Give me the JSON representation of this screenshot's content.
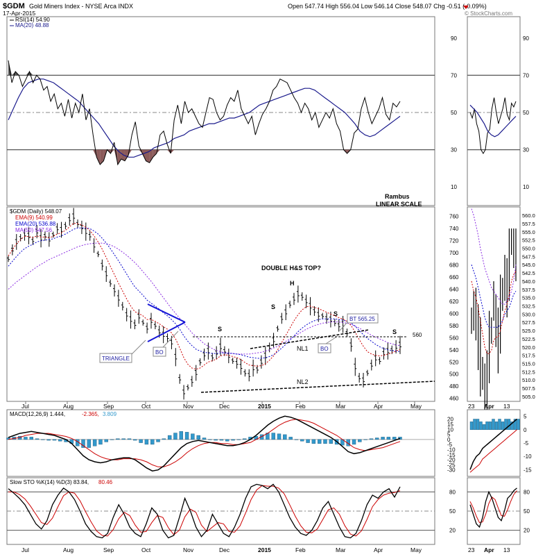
{
  "header": {
    "symbol": "$GDM",
    "name": "Gold Miners Index - NYSE Arca INDX",
    "date": "17-Apr-2015",
    "ohlc": "Open 547.74  High 556.04  Low 546.14  Close 548.07  Chg -0.51 (-0.09%)",
    "watermark": "© StockCharts.com"
  },
  "colors": {
    "price": "#000000",
    "ema9": "#cc0000",
    "ema20": "#0000cc",
    "ma50": "#8a2be2",
    "rsi_ma": "#1a1a8c",
    "macd_hist": "#3399cc",
    "oversold_fill": "#8b5a5a",
    "overbought_fill": "#555555"
  },
  "chart_data": [
    {
      "type": "line",
      "title": "RSI(14) 54.90",
      "legend": [
        "RSI(14) 54.90",
        "MA(20) 48.88"
      ],
      "ylim": [
        0,
        100
      ],
      "y_ticks": [
        10,
        30,
        50,
        70,
        90
      ],
      "x_ticks": [
        "Jul",
        "Aug",
        "Sep",
        "Oct",
        "Nov",
        "Dec",
        "2015",
        "Feb",
        "Mar",
        "Apr",
        "May"
      ],
      "series": [
        {
          "name": "RSI(14)",
          "values": [
            78,
            66,
            72,
            70,
            64,
            68,
            72,
            66,
            70,
            68,
            62,
            64,
            56,
            60,
            52,
            55,
            48,
            57,
            47,
            55,
            50,
            60,
            46,
            52,
            38,
            26,
            22,
            24,
            30,
            28,
            34,
            22,
            25,
            24,
            27,
            38,
            45,
            32,
            28,
            24,
            23,
            26,
            28,
            38,
            40,
            33,
            28,
            46,
            54,
            44,
            56,
            50,
            52,
            48,
            44,
            42,
            50,
            58,
            57,
            50,
            46,
            48,
            54,
            58,
            56,
            62,
            52,
            48,
            44,
            48,
            38,
            44,
            49,
            52,
            56,
            62,
            64,
            68,
            67,
            66,
            62,
            58,
            55,
            50,
            55,
            52,
            46,
            50,
            42,
            46,
            50,
            47,
            52,
            44,
            40,
            30,
            28,
            30,
            39,
            41,
            52,
            58,
            50,
            44,
            48,
            52,
            58,
            49,
            46,
            55,
            53,
            56
          ]
        },
        {
          "name": "MA(20)",
          "values": [
            46,
            52,
            58,
            63,
            66,
            67,
            68,
            68,
            67,
            66,
            64,
            62,
            60,
            58,
            56,
            53,
            50,
            47,
            44,
            40,
            36,
            32,
            29,
            27,
            26,
            26,
            27,
            28,
            29,
            31,
            32,
            33,
            34,
            36,
            37,
            38,
            40,
            41,
            42,
            43,
            44,
            44,
            45,
            46,
            47,
            47,
            48,
            49,
            50,
            52,
            54,
            55,
            56,
            57,
            58,
            59,
            60,
            61,
            62,
            63,
            63,
            62,
            60,
            58,
            56,
            54,
            52,
            50,
            47,
            44,
            40,
            38,
            37,
            38,
            40,
            42,
            44,
            46,
            48
          ]
        }
      ],
      "annotations": [
        "Rambus",
        "LINEAR SCALE"
      ]
    },
    {
      "type": "line",
      "title": "$GDM (Daily) 548.07",
      "legend": [
        "$GDM (Daily) 548.07",
        "EMA(9) 540.99",
        "EMA(20) 536.88",
        "MA(50) 547.56"
      ],
      "ylim": [
        455,
        770
      ],
      "y_ticks": [
        460,
        480,
        500,
        520,
        540,
        560,
        580,
        600,
        620,
        640,
        660,
        680,
        700,
        720,
        740,
        760
      ],
      "x_ticks": [
        "Jul",
        "Aug",
        "Sep",
        "Oct",
        "Nov",
        "Dec",
        "2015",
        "Feb",
        "Mar",
        "Apr",
        "May"
      ],
      "series": [
        {
          "name": "$GDM (Daily)",
          "values": [
            690,
            705,
            718,
            725,
            730,
            728,
            720,
            735,
            724,
            728,
            722,
            730,
            740,
            738,
            745,
            755,
            760,
            748,
            742,
            735,
            728,
            712,
            698,
            680,
            665,
            650,
            638,
            625,
            612,
            598,
            590,
            582,
            595,
            585,
            576,
            588,
            580,
            570,
            565,
            560,
            552,
            528,
            492,
            470,
            478,
            488,
            502,
            520,
            532,
            538,
            528,
            535,
            545,
            538,
            530,
            522,
            518,
            512,
            502,
            498,
            510,
            508,
            520,
            530,
            544,
            556,
            575,
            592,
            602,
            615,
            624,
            632,
            628,
            620,
            612,
            604,
            598,
            596,
            592,
            590,
            585,
            580,
            582,
            568,
            548,
            512,
            494,
            490,
            502,
            515,
            526,
            522,
            534,
            538,
            540,
            545,
            548
          ]
        },
        {
          "name": "EMA(9)",
          "values": [
            695,
            705,
            715,
            722,
            727,
            727,
            725,
            728,
            726,
            726,
            725,
            727,
            731,
            733,
            737,
            743,
            749,
            748,
            746,
            742,
            737,
            728,
            718,
            706,
            692,
            678,
            664,
            650,
            637,
            624,
            612,
            603,
            600,
            596,
            590,
            590,
            587,
            583,
            578,
            574,
            568,
            558,
            543,
            527,
            516,
            510,
            508,
            510,
            515,
            520,
            522,
            525,
            530,
            532,
            531,
            529,
            527,
            524,
            519,
            515,
            514,
            513,
            514,
            517,
            523,
            530,
            540,
            552,
            564,
            576,
            588,
            598,
            606,
            611,
            612,
            610,
            608,
            605,
            602,
            599,
            596,
            593,
            591,
            587,
            580,
            569,
            557,
            546,
            537,
            533,
            531,
            530,
            531,
            533,
            535,
            538,
            541
          ]
        },
        {
          "name": "EMA(20)",
          "values": [
            678,
            686,
            694,
            701,
            707,
            711,
            714,
            718,
            720,
            721,
            722,
            723,
            726,
            728,
            731,
            735,
            739,
            741,
            741,
            741,
            740,
            736,
            731,
            724,
            716,
            707,
            697,
            687,
            676,
            665,
            654,
            644,
            637,
            630,
            622,
            617,
            612,
            607,
            601,
            596,
            590,
            583,
            574,
            563,
            554,
            547,
            541,
            538,
            536,
            535,
            534,
            534,
            535,
            535,
            535,
            534,
            533,
            532,
            530,
            528,
            527,
            526,
            526,
            527,
            529,
            532,
            537,
            543,
            549,
            556,
            563,
            570,
            576,
            581,
            585,
            588,
            590,
            591,
            591,
            591,
            591,
            590,
            589,
            587,
            584,
            579,
            572,
            565,
            559,
            554,
            549,
            545,
            542,
            540,
            539,
            538,
            537
          ]
        },
        {
          "name": "MA(50)",
          "values": [
            640,
            646,
            652,
            657,
            662,
            667,
            672,
            677,
            681,
            685,
            689,
            692,
            695,
            698,
            701,
            704,
            707,
            710,
            712,
            714,
            715,
            716,
            716,
            716,
            715,
            713,
            710,
            706,
            701,
            696,
            690,
            684,
            677,
            669,
            661,
            653,
            644,
            635,
            626,
            617,
            608,
            600,
            592,
            584,
            576,
            568,
            562,
            556,
            550,
            546,
            542,
            539,
            537,
            535,
            534,
            534,
            533,
            533,
            533,
            533,
            534,
            535,
            536,
            538,
            540,
            543,
            546,
            550,
            554,
            558,
            562,
            566,
            570,
            574,
            577,
            580,
            582,
            584,
            585,
            586,
            586,
            586,
            585,
            584,
            582,
            579,
            576,
            572,
            568,
            564,
            561,
            558,
            555,
            552,
            550,
            548,
            547
          ]
        }
      ],
      "annotations": [
        "DOUBLE H&S TOP?",
        "H",
        "S",
        "S",
        "S",
        "S",
        "BT 565.25",
        "BO",
        "BO",
        "TRIANGLE",
        "NL1",
        "NL2",
        "560"
      ],
      "inset": {
        "y_ticks": [
          "505.0",
          "507.5",
          "510.0",
          "512.5",
          "515.0",
          "517.5",
          "520.0",
          "522.5",
          "525.0",
          "527.5",
          "530.0",
          "532.5",
          "535.0",
          "537.5",
          "540.0",
          "542.5",
          "545.0",
          "547.5",
          "550.0",
          "552.5",
          "555.0",
          "557.5",
          "560.0"
        ],
        "x_ticks": [
          "23",
          "Apr",
          "13"
        ]
      }
    },
    {
      "type": "line",
      "title": "MACD(12,26,9) 1.444, -2.365, 3.809",
      "legend": [
        "MACD(12,26,9) 1.444,",
        "-2.365,",
        "3.809"
      ],
      "ylim": [
        -35,
        28
      ],
      "y_ticks": [
        -30,
        -25,
        -20,
        -15,
        -10,
        -5,
        0,
        5,
        10,
        15,
        20
      ],
      "inset_y_ticks": [
        -15,
        -10,
        -5,
        0,
        5
      ],
      "x_ticks": [
        "Jul",
        "Aug",
        "Sep",
        "Oct",
        "Nov",
        "Dec",
        "2015",
        "Feb",
        "Mar",
        "Apr",
        "May"
      ],
      "series": [
        {
          "name": "MACD",
          "values": [
            2,
            4,
            6,
            7,
            8,
            7,
            6,
            5,
            4,
            2,
            0,
            -4,
            -10,
            -16,
            -20,
            -22,
            -23,
            -22,
            -20,
            -19,
            -18,
            -18,
            -20,
            -24,
            -28,
            -31,
            -30,
            -26,
            -20,
            -14,
            -8,
            -4,
            -2,
            -1,
            -2,
            -3,
            -4,
            -5,
            -6,
            -6,
            -5,
            -3,
            0,
            4,
            9,
            14,
            18,
            21,
            23,
            22,
            20,
            17,
            14,
            11,
            8,
            5,
            2,
            -2,
            -7,
            -12,
            -14,
            -13,
            -11,
            -9,
            -7,
            -5,
            -3,
            -1,
            1
          ]
        },
        {
          "name": "Signal",
          "values": [
            0,
            1,
            2,
            4,
            5,
            6,
            6,
            6,
            5,
            4,
            3,
            1,
            -2,
            -6,
            -10,
            -14,
            -17,
            -19,
            -20,
            -20,
            -19,
            -19,
            -19,
            -20,
            -22,
            -25,
            -27,
            -27,
            -25,
            -22,
            -18,
            -13,
            -9,
            -6,
            -4,
            -3,
            -3,
            -4,
            -4,
            -5,
            -5,
            -4,
            -3,
            0,
            3,
            6,
            10,
            14,
            17,
            19,
            20,
            19,
            18,
            16,
            13,
            10,
            7,
            4,
            0,
            -4,
            -8,
            -10,
            -11,
            -10,
            -9,
            -8,
            -6,
            -4,
            -2
          ]
        }
      ]
    },
    {
      "type": "line",
      "title": "Slow STO %K(14) %D(3) 83.84, 80.46",
      "legend": [
        "Slow STO %K(14) %D(3) 83.84,",
        "80.46"
      ],
      "ylim": [
        0,
        100
      ],
      "y_ticks": [
        20,
        50,
        80
      ],
      "x_ticks": [
        "Jul",
        "Aug",
        "Sep",
        "Oct",
        "Nov",
        "Dec",
        "2015",
        "Feb",
        "Mar",
        "Apr",
        "May"
      ],
      "series": [
        {
          "name": "%K",
          "values": [
            85,
            78,
            70,
            60,
            45,
            30,
            22,
            35,
            60,
            75,
            86,
            80,
            68,
            50,
            30,
            18,
            10,
            8,
            15,
            40,
            60,
            45,
            25,
            15,
            10,
            30,
            55,
            45,
            20,
            8,
            12,
            40,
            70,
            50,
            25,
            10,
            20,
            45,
            30,
            15,
            10,
            25,
            45,
            70,
            88,
            92,
            90,
            85,
            92,
            80,
            60,
            40,
            25,
            15,
            12,
            20,
            35,
            55,
            65,
            45,
            25,
            10,
            8,
            15,
            35,
            60,
            75,
            70,
            80,
            85,
            72,
            88
          ]
        },
        {
          "name": "%D",
          "values": [
            80,
            80,
            76,
            69,
            58,
            45,
            32,
            29,
            39,
            57,
            74,
            80,
            78,
            66,
            49,
            33,
            19,
            12,
            11,
            21,
            38,
            48,
            43,
            28,
            17,
            18,
            32,
            43,
            40,
            24,
            13,
            20,
            41,
            53,
            48,
            28,
            18,
            25,
            32,
            30,
            18,
            17,
            27,
            47,
            68,
            83,
            90,
            89,
            89,
            86,
            77,
            60,
            42,
            27,
            17,
            16,
            22,
            37,
            52,
            55,
            45,
            27,
            14,
            11,
            19,
            37,
            57,
            68,
            75,
            78,
            79,
            82
          ]
        }
      ]
    }
  ],
  "x_labels": [
    "Jul",
    "Aug",
    "Sep",
    "Oct",
    "Nov",
    "Dec",
    "2015",
    "Feb",
    "Mar",
    "Apr",
    "May"
  ],
  "x_labels_inset": [
    "23",
    "Apr",
    "13"
  ]
}
